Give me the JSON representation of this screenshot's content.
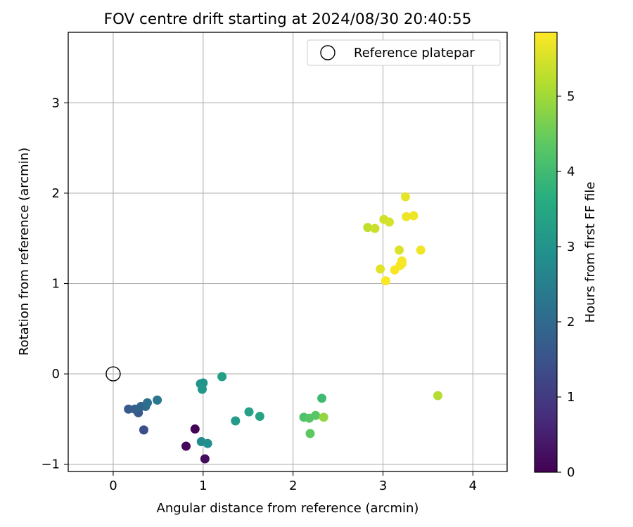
{
  "chart_data": {
    "type": "scatter",
    "title": "FOV centre drift starting at 2024/08/30 20:40:55",
    "xlabel": "Angular distance from reference (arcmin)",
    "ylabel": "Rotation from reference (arcmin)",
    "xlim": [
      -0.5,
      4.38
    ],
    "ylim": [
      -1.08,
      3.78
    ],
    "xticks": [
      0,
      1,
      2,
      3,
      4
    ],
    "yticks": [
      -1,
      0,
      1,
      2,
      3
    ],
    "grid": true,
    "legend": {
      "position": "top-right",
      "entries": [
        "Reference platepar"
      ]
    },
    "reference_point": {
      "x": 0,
      "y": 0,
      "label": "Reference platepar"
    },
    "colorbar": {
      "label": "Hours from first FF file",
      "min": 0,
      "max": 5.85,
      "ticks": [
        0,
        1,
        2,
        3,
        4,
        5
      ],
      "colormap": "viridis"
    },
    "points": [
      {
        "x": 0.91,
        "y": -0.61,
        "hours": 0.05
      },
      {
        "x": 0.81,
        "y": -0.8,
        "hours": 0.1
      },
      {
        "x": 1.02,
        "y": -0.94,
        "hours": 0.2
      },
      {
        "x": 0.34,
        "y": -0.62,
        "hours": 1.4
      },
      {
        "x": 0.28,
        "y": -0.43,
        "hours": 1.6
      },
      {
        "x": 0.17,
        "y": -0.39,
        "hours": 1.7
      },
      {
        "x": 0.24,
        "y": -0.39,
        "hours": 1.8
      },
      {
        "x": 0.31,
        "y": -0.36,
        "hours": 1.9
      },
      {
        "x": 0.36,
        "y": -0.36,
        "hours": 2.0
      },
      {
        "x": 0.38,
        "y": -0.32,
        "hours": 2.15
      },
      {
        "x": 0.49,
        "y": -0.29,
        "hours": 2.3
      },
      {
        "x": 0.98,
        "y": -0.75,
        "hours": 2.8
      },
      {
        "x": 1.05,
        "y": -0.77,
        "hours": 2.9
      },
      {
        "x": 1.0,
        "y": -0.1,
        "hours": 3.0
      },
      {
        "x": 0.97,
        "y": -0.11,
        "hours": 3.05
      },
      {
        "x": 0.99,
        "y": -0.17,
        "hours": 3.1
      },
      {
        "x": 1.36,
        "y": -0.52,
        "hours": 3.2
      },
      {
        "x": 1.21,
        "y": -0.03,
        "hours": 3.3
      },
      {
        "x": 1.51,
        "y": -0.42,
        "hours": 3.35
      },
      {
        "x": 1.63,
        "y": -0.47,
        "hours": 3.4
      },
      {
        "x": 2.32,
        "y": -0.27,
        "hours": 4.0
      },
      {
        "x": 2.12,
        "y": -0.48,
        "hours": 4.2
      },
      {
        "x": 2.18,
        "y": -0.49,
        "hours": 4.3
      },
      {
        "x": 2.25,
        "y": -0.46,
        "hours": 4.35
      },
      {
        "x": 2.19,
        "y": -0.66,
        "hours": 4.4
      },
      {
        "x": 2.34,
        "y": -0.48,
        "hours": 4.9
      },
      {
        "x": 3.61,
        "y": -0.24,
        "hours": 5.2
      },
      {
        "x": 2.83,
        "y": 1.62,
        "hours": 5.3
      },
      {
        "x": 2.91,
        "y": 1.61,
        "hours": 5.4
      },
      {
        "x": 3.01,
        "y": 1.71,
        "hours": 5.45
      },
      {
        "x": 3.07,
        "y": 1.68,
        "hours": 5.5
      },
      {
        "x": 3.18,
        "y": 1.37,
        "hours": 5.55
      },
      {
        "x": 2.97,
        "y": 1.16,
        "hours": 5.6
      },
      {
        "x": 3.25,
        "y": 1.96,
        "hours": 5.65
      },
      {
        "x": 3.26,
        "y": 1.74,
        "hours": 5.7
      },
      {
        "x": 3.34,
        "y": 1.75,
        "hours": 5.72
      },
      {
        "x": 3.42,
        "y": 1.37,
        "hours": 5.74
      },
      {
        "x": 3.21,
        "y": 1.25,
        "hours": 5.76
      },
      {
        "x": 3.19,
        "y": 1.2,
        "hours": 5.78
      },
      {
        "x": 3.21,
        "y": 1.22,
        "hours": 5.79
      },
      {
        "x": 3.13,
        "y": 1.15,
        "hours": 5.8
      },
      {
        "x": 3.03,
        "y": 1.03,
        "hours": 5.82
      }
    ]
  }
}
